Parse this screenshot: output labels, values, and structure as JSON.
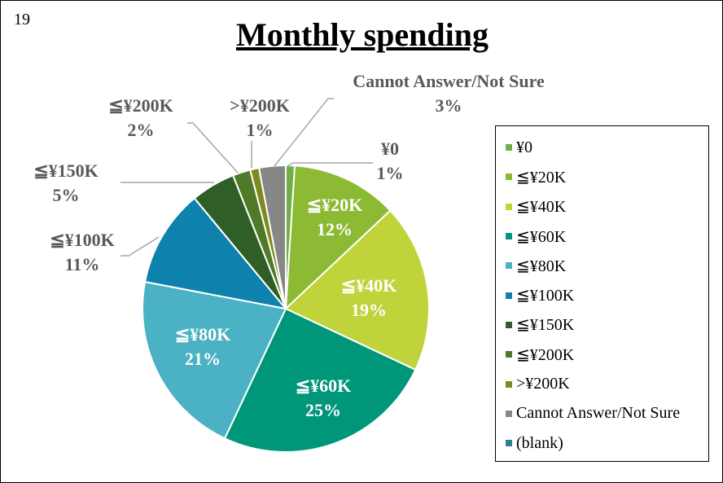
{
  "page": {
    "page_number": "19"
  },
  "chart_data": {
    "type": "pie",
    "title": "Monthly spending",
    "legend_position": "right",
    "slices": [
      {
        "label": "¥0",
        "value": 1,
        "display": "1%",
        "color": "#70AD47"
      },
      {
        "label": "≦¥20K",
        "value": 12,
        "display": "12%",
        "color": "#8CBA34"
      },
      {
        "label": "≦¥40K",
        "value": 19,
        "display": "19%",
        "color": "#C0D33A"
      },
      {
        "label": "≦¥60K",
        "value": 25,
        "display": "25%",
        "color": "#00967A"
      },
      {
        "label": "≦¥80K",
        "value": 21,
        "display": "21%",
        "color": "#4AB2C4"
      },
      {
        "label": "≦¥100K",
        "value": 11,
        "display": "11%",
        "color": "#0E81AD"
      },
      {
        "label": "≦¥150K",
        "value": 5,
        "display": "5%",
        "color": "#2F5F26"
      },
      {
        "label": "≦¥200K",
        "value": 2,
        "display": "2%",
        "color": "#4F7A28"
      },
      {
        "label": ">¥200K",
        "value": 1,
        "display": "1%",
        "color": "#7F8A1E"
      },
      {
        "label": "Cannot Answer/Not Sure",
        "value": 3,
        "display": "3%",
        "color": "#878787"
      },
      {
        "label": "(blank)",
        "value": 0,
        "display": "",
        "color": "#2F7F8F"
      }
    ],
    "inside_label_color": "#ffffff",
    "outside_label_color": "#595959"
  }
}
